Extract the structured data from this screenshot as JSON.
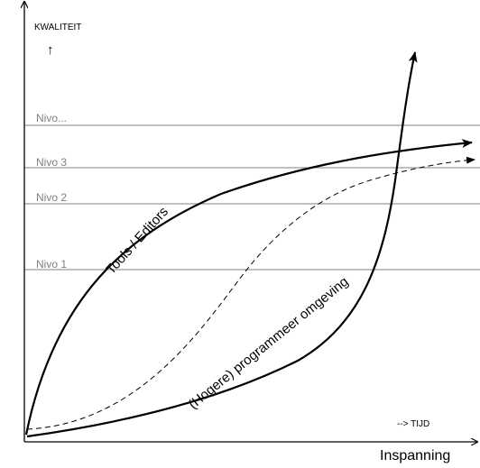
{
  "axes": {
    "y_label": "KWALITEIT",
    "y_arrow": "↑",
    "x_label": "Inspanning",
    "time_note": "--> TIJD"
  },
  "levels": [
    "Nivo...",
    "Nivo 3",
    "Nivo 2",
    "Nivo 1"
  ],
  "curves": {
    "tools": "Tools / Editors",
    "programming": "(Hogere) programmeer omgeving"
  }
}
